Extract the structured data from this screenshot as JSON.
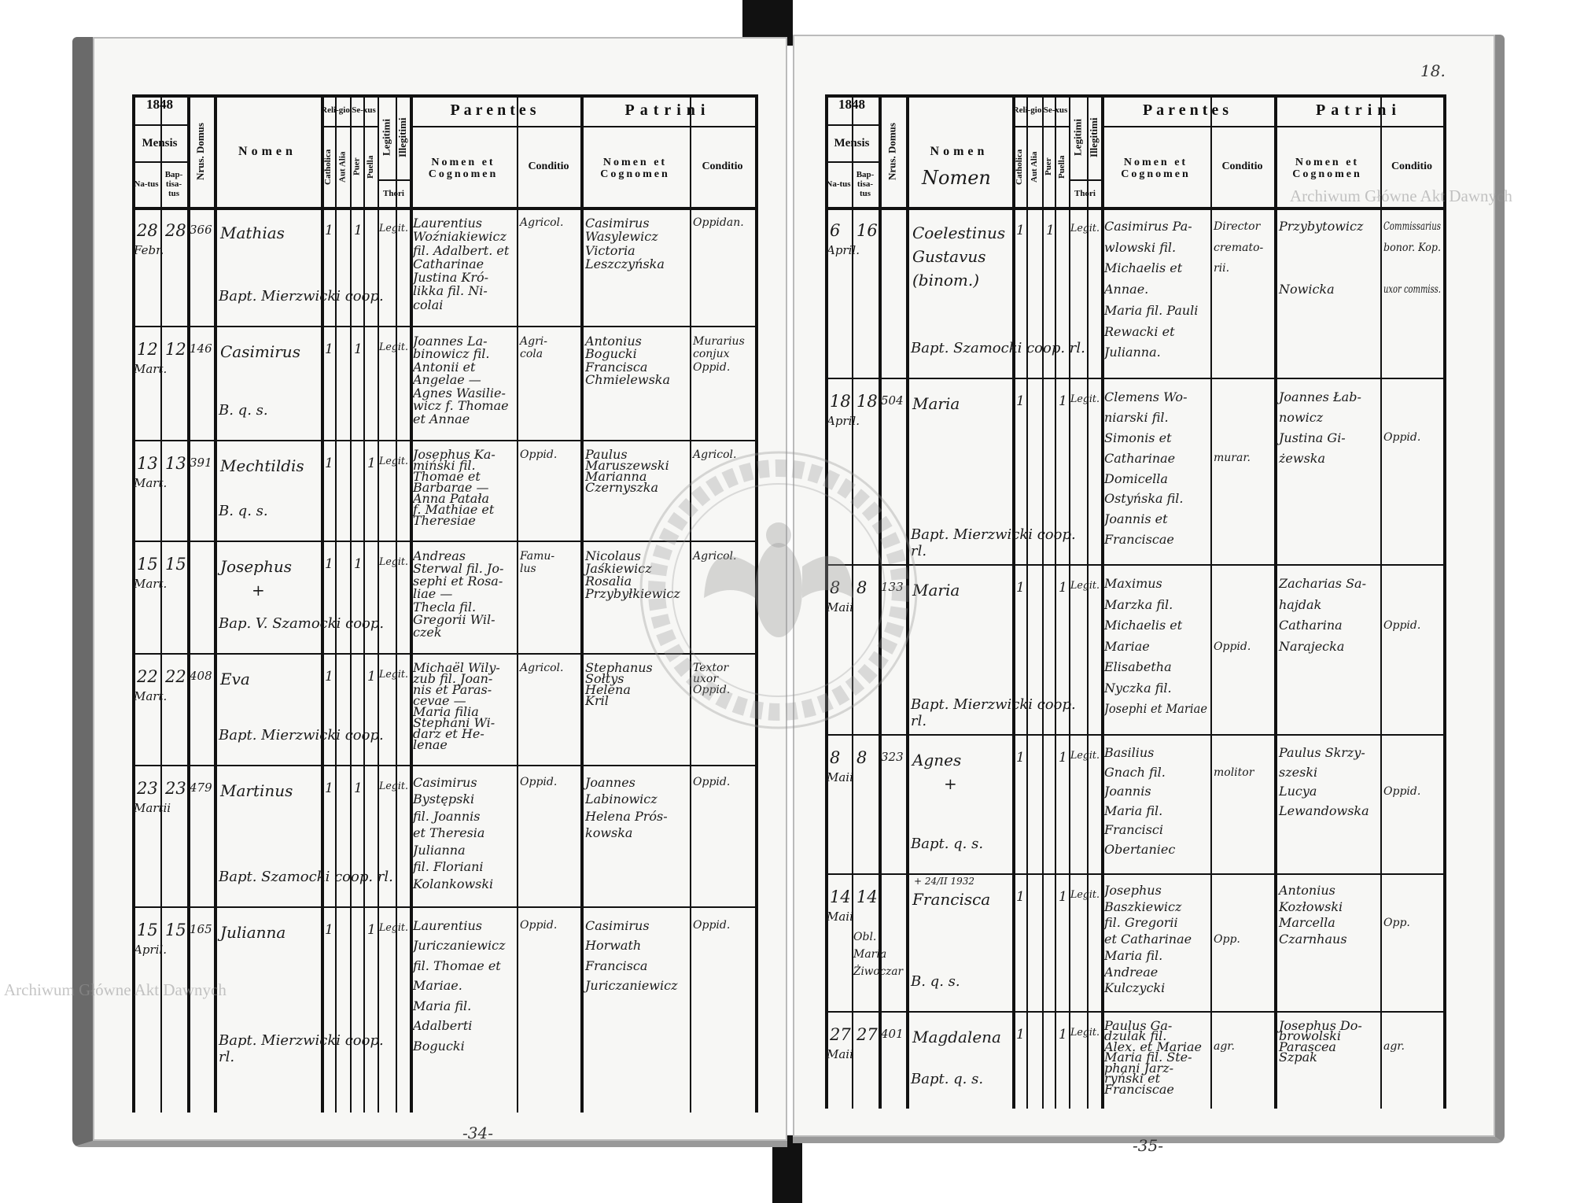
{
  "header_labels": {
    "year_prefix": "18",
    "mensis": "Mensis",
    "natus": "Na-tus",
    "baptisatus": "Bap-tisa-tus",
    "domus": "Nrus. Domus",
    "nomen": "Nomen",
    "religio": "Reli-gio",
    "catholica": "Catholica",
    "aut_alia": "Aut Alia",
    "sexus": "Se-xus",
    "puer": "Puer",
    "puella": "Puella",
    "legitimi": "Legitimi",
    "illegitimi": "Illegitimi",
    "thori": "Thori",
    "parentes": "Parentes",
    "patrini": "Patrini",
    "nomen_et_cognomen": "Nomen et Cognomen",
    "conditio": "Conditio"
  },
  "left_page": {
    "year": "1848",
    "page_footer": "-34-",
    "entries": [
      {
        "natus": "28",
        "month": "Febr.",
        "baptisatus": "28",
        "domus": "366",
        "nomen": [
          "Mathias"
        ],
        "catholica": "1",
        "sex": "puer",
        "legit": "Legit.",
        "parents": [
          "Laurentius",
          "Woźniakiewicz",
          "fil. Adalbert. et",
          "Catharinae",
          "Justina Kró-",
          "likka fil. Ni-",
          "colai"
        ],
        "parents_conditio": [
          "Agricol."
        ],
        "patrini": [
          "Casimirus",
          "Wasylewicz",
          "Victoria",
          "Leszczyńska"
        ],
        "patrini_conditio": [
          "Oppidan."
        ],
        "note": "Bapt. Mierzwicki coop."
      },
      {
        "natus": "12",
        "month": "Mart.",
        "baptisatus": "12",
        "domus": "146",
        "nomen": [
          "Casimirus"
        ],
        "catholica": "1",
        "sex": "puer",
        "legit": "Legit.",
        "parents": [
          "Joannes La-",
          "binowicz fil.",
          "Antonii et",
          "Angelae —",
          "Agnes Wasilie-",
          "wicz f. Thomae",
          "et Annae"
        ],
        "parents_conditio": [
          "Agri-",
          "cola"
        ],
        "patrini": [
          "Antonius",
          "Bogucki",
          "Francisca",
          "Chmielewska"
        ],
        "patrini_conditio": [
          "Murarius",
          "conjux",
          "Oppid."
        ],
        "note": "B. q. s."
      },
      {
        "natus": "13",
        "month": "Mart.",
        "baptisatus": "13",
        "domus": "391",
        "nomen": [
          "Mechtildis"
        ],
        "catholica": "1",
        "sex": "puella",
        "legit": "Legit.",
        "parents": [
          "Josephus Ka-",
          "miński fil.",
          "Thomae et",
          "Barbarae —",
          "Anna Patała",
          "f. Mathiae et",
          "Theresiae"
        ],
        "parents_conditio": [
          "Oppid."
        ],
        "patrini": [
          "Paulus",
          "Maruszewski",
          "Marianna",
          "Czernyszka"
        ],
        "patrini_conditio": [
          "Agricol."
        ],
        "note": "B. q. s."
      },
      {
        "natus": "15",
        "month": "Mart.",
        "baptisatus": "15",
        "domus": "",
        "nomen": [
          "Josephus",
          "+"
        ],
        "catholica": "1",
        "sex": "puer",
        "legit": "Legit.",
        "parents": [
          "Andreas",
          "Sterwal fil. Jo-",
          "sephi et Rosa-",
          "liae —",
          "Thecla fil.",
          "Gregorii Wil-",
          "czek"
        ],
        "parents_conditio": [
          "Famu-",
          "lus"
        ],
        "patrini": [
          "Nicolaus",
          "Jaśkiewicz",
          "Rosalia",
          "Przybyłkiewicz"
        ],
        "patrini_conditio": [
          "Agricol."
        ],
        "note": "Bap. V. Szamocki coop."
      },
      {
        "natus": "22",
        "month": "Mart.",
        "baptisatus": "22",
        "domus": "408",
        "nomen": [
          "Eva"
        ],
        "catholica": "1",
        "sex": "puella",
        "legit": "Legit.",
        "parents": [
          "Michaël Wily-",
          "zub fil. Joan-",
          "nis et Paras-",
          "cevae —",
          "Maria filia",
          "Stephani Wi-",
          "darz et He-",
          "lenae"
        ],
        "parents_conditio": [
          "Agricol."
        ],
        "patrini": [
          "Stephanus",
          "Sołtys",
          "Helena",
          "Kril"
        ],
        "patrini_conditio": [
          "Textor",
          "uxor",
          "Oppid."
        ],
        "note": "Bapt. Mierzwicki coop."
      },
      {
        "natus": "23",
        "month": "Martii",
        "baptisatus": "23",
        "domus": "479",
        "nomen": [
          "Martinus"
        ],
        "catholica": "1",
        "sex": "puer",
        "legit": "Legit.",
        "parents": [
          "Casimirus",
          "Bystępski",
          "fil. Joannis",
          "et Theresia",
          "Julianna",
          "fil. Floriani",
          "Kolankowski"
        ],
        "parents_conditio": [
          "Oppid."
        ],
        "patrini": [
          "Joannes",
          "Labinowicz",
          "Helena Prós-",
          "kowska"
        ],
        "patrini_conditio": [
          "Oppid."
        ],
        "note": "Bapt. Szamocki coop. rl."
      },
      {
        "natus": "15",
        "month": "April.",
        "baptisatus": "15",
        "domus": "165",
        "nomen": [
          "Julianna"
        ],
        "catholica": "1",
        "sex": "puella",
        "legit": "Legit.",
        "parents": [
          "Laurentius",
          "Juriczaniewicz",
          "fil. Thomae et",
          "Mariae.",
          "Maria fil.",
          "Adalberti",
          "Bogucki"
        ],
        "parents_conditio": [
          "Oppid."
        ],
        "patrini": [
          "Casimirus",
          "Horwath",
          "Francisca",
          "Juriczaniewicz"
        ],
        "patrini_conditio": [
          "Oppid."
        ],
        "note": "Bapt. Mierzwicki coop. rl."
      }
    ]
  },
  "right_page": {
    "year": "1848",
    "page_number": "18.",
    "page_footer": "-35-",
    "nomen_annotation": "Nomen",
    "entries": [
      {
        "natus": "6",
        "month": "April.",
        "baptisatus": "16",
        "domus": "",
        "nomen": [
          "Coelestinus",
          "Gustavus",
          "(binom.)"
        ],
        "catholica": "1",
        "sex": "puer",
        "legit": "Legit.",
        "parents": [
          "Casimirus Pa-",
          "wlowski fil.",
          "Michaelis et",
          "Annae.",
          "Maria fil. Pauli",
          "Rewacki et",
          "Julianna."
        ],
        "parents_conditio": [
          "Director",
          "cremato-",
          "rii."
        ],
        "patrini": [
          "Przybytowicz",
          "",
          "",
          "Nowicka"
        ],
        "patrini_conditio": [
          "Commissarius",
          "bonor. Kop.",
          "",
          "uxor commiss."
        ],
        "note": "Bapt. Szamocki coop. rl."
      },
      {
        "natus": "18",
        "month": "April.",
        "baptisatus": "18",
        "domus": "504",
        "nomen": [
          "Maria"
        ],
        "catholica": "1",
        "sex": "puella",
        "legit": "Legit.",
        "parents": [
          "Clemens Wo-",
          "niarski fil.",
          "Simonis et",
          "Catharinae",
          "Domicella",
          "Ostyńska fil.",
          "Joannis et",
          "Franciscae"
        ],
        "parents_conditio": [
          "",
          "",
          "",
          "murar."
        ],
        "patrini": [
          "Joannes Łab-",
          "nowicz",
          "Justina Gi-",
          "żewska"
        ],
        "patrini_conditio": [
          "",
          "",
          "Oppid."
        ],
        "note": "Bapt. Mierzwicki coop. rl."
      },
      {
        "natus": "8",
        "month": "Maii",
        "baptisatus": "8",
        "domus": "133",
        "nomen": [
          "Maria"
        ],
        "catholica": "1",
        "sex": "puella",
        "legit": "Legit.",
        "parents": [
          "Maximus",
          "Marzka fil.",
          "Michaelis et",
          "Mariae",
          "Elisabetha",
          "Nyczka fil.",
          "Josephi et Mariae"
        ],
        "parents_conditio": [
          "",
          "",
          "",
          "Oppid."
        ],
        "patrini": [
          "Zacharias Sa-",
          "hajdak",
          "Catharina",
          "Narajecka"
        ],
        "patrini_conditio": [
          "",
          "",
          "Oppid."
        ],
        "note": "Bapt. Mierzwicki coop. rl."
      },
      {
        "natus": "8",
        "month": "Maii",
        "baptisatus": "8",
        "domus": "323",
        "nomen": [
          "Agnes",
          "+"
        ],
        "catholica": "1",
        "sex": "puella",
        "legit": "Legit.",
        "parents": [
          "Basilius",
          "Gnach fil.",
          "Joannis",
          "Maria fil.",
          "Francisci",
          "Obertaniec"
        ],
        "parents_conditio": [
          "",
          "molitor"
        ],
        "patrini": [
          "Paulus Skrzy-",
          "szeski",
          "Lucya",
          "Lewandowska"
        ],
        "patrini_conditio": [
          "",
          "",
          "Oppid."
        ],
        "note": "Bapt. q. s."
      },
      {
        "natus": "14",
        "month": "Maii",
        "baptisatus": "14",
        "domus": "",
        "nomen": [
          "Francisca"
        ],
        "annotation": "+ 24/II 1932",
        "margin_note": [
          "Obl.",
          "Maria",
          "Żiwoczar"
        ],
        "catholica": "1",
        "sex": "puella",
        "legit": "Legit.",
        "parents": [
          "Josephus",
          "Baszkiewicz",
          "fil. Gregorii",
          "et Catharinae",
          "Maria fil.",
          "Andreae",
          "Kulczycki"
        ],
        "parents_conditio": [
          "",
          "",
          "",
          "Opp."
        ],
        "patrini": [
          "Antonius",
          "Kozłowski",
          "Marcella",
          "Czarnhaus"
        ],
        "patrini_conditio": [
          "",
          "",
          "Opp."
        ],
        "note": "B. q. s."
      },
      {
        "natus": "27",
        "month": "Maii",
        "baptisatus": "27",
        "domus": "401",
        "nomen": [
          "Magdalena"
        ],
        "catholica": "1",
        "sex": "puella",
        "legit": "Legit.",
        "parents": [
          "Paulus Ga-",
          "dzulak fil.",
          "Alex. et Mariae",
          "Maria fil. Ste-",
          "phani Jarz-",
          "ryński et",
          "Franciscae"
        ],
        "parents_conditio": [
          "",
          "",
          "agr."
        ],
        "patrini": [
          "Josephus Do-",
          "browolski",
          "Parascea",
          "Szpak"
        ],
        "patrini_conditio": [
          "",
          "",
          "agr."
        ],
        "note": "Bapt. q. s."
      }
    ]
  },
  "watermarks": {
    "text": "Archiwum Główne Akt Dawnych",
    "stamp_text": "ARCHIWUM GŁÓWNE AKT DAWNYCH"
  }
}
